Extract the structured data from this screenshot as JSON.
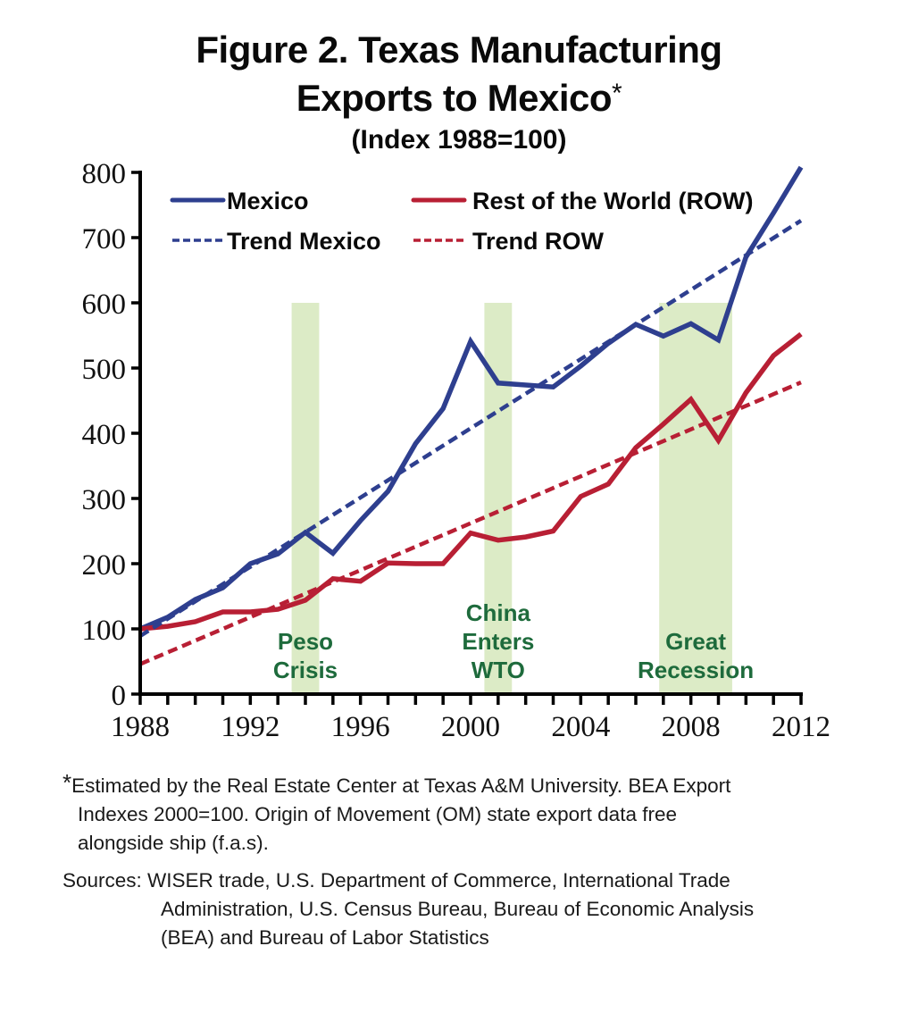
{
  "title": {
    "line1": "Figure 2. Texas Manufacturing",
    "line2": "Exports to Mexico",
    "line2_marker": "*",
    "subtitle": "(Index 1988=100)"
  },
  "chart_data": {
    "type": "line",
    "title": "Figure 2. Texas Manufacturing Exports to Mexico* (Index 1988=100)",
    "xlabel": "",
    "ylabel": "",
    "xlim": [
      1988,
      2012
    ],
    "ylim": [
      0,
      800
    ],
    "grid": false,
    "legend_position": "top",
    "x_ticks": [
      1988,
      1992,
      1996,
      2000,
      2004,
      2008,
      2012
    ],
    "x_tick_labels": [
      "1988",
      "1992",
      "1996",
      "2000",
      "2004",
      "2008",
      "2012"
    ],
    "y_ticks": [
      0,
      100,
      200,
      300,
      400,
      500,
      600,
      700,
      800
    ],
    "y_tick_labels": [
      "0",
      "100",
      "200",
      "300",
      "400",
      "500",
      "600",
      "700",
      "800"
    ],
    "x": [
      1988,
      1989,
      1990,
      1991,
      1992,
      1993,
      1994,
      1995,
      1996,
      1997,
      1998,
      1999,
      2000,
      2001,
      2002,
      2003,
      2004,
      2005,
      2006,
      2007,
      2008,
      2009,
      2010,
      2011,
      2012
    ],
    "series": [
      {
        "name": "Mexico",
        "style": "solid",
        "color": "#2e3f8f",
        "values": [
          100,
          118,
          145,
          163,
          200,
          215,
          248,
          216,
          266,
          311,
          384,
          438,
          541,
          477,
          474,
          471,
          503,
          538,
          567,
          549,
          568,
          543,
          670,
          738,
          808
        ]
      },
      {
        "name": "Rest of the World (ROW)",
        "style": "solid",
        "color": "#b81f34",
        "values": [
          100,
          104,
          111,
          126,
          126,
          130,
          144,
          177,
          173,
          201,
          200,
          200,
          247,
          236,
          241,
          250,
          303,
          322,
          378,
          414,
          452,
          389,
          462,
          519,
          552
        ]
      },
      {
        "name": "Trend Mexico",
        "style": "dashed",
        "color": "#2e3f8f",
        "x": [
          1988,
          2012
        ],
        "values": [
          89,
          726
        ]
      },
      {
        "name": "Trend ROW",
        "style": "dashed",
        "color": "#b81f34",
        "x": [
          1988,
          2012
        ],
        "values": [
          46,
          478
        ]
      }
    ],
    "shaded_periods": [
      {
        "label_lines": [
          "Peso",
          "Crisis"
        ],
        "x_start": 1993.5,
        "x_end": 1994.5,
        "y_top": 600
      },
      {
        "label_lines": [
          "China",
          "Enters",
          "WTO"
        ],
        "x_start": 2000.5,
        "x_end": 2001.5,
        "y_top": 600
      },
      {
        "label_lines": [
          "Great",
          "Recession"
        ],
        "x_start": 2006.85,
        "x_end": 2009.5,
        "y_top": 600
      }
    ],
    "colors": {
      "shade": "#dcebc6",
      "annotation_text": "#1e6b3c",
      "axis": "#000000"
    }
  },
  "footnotes": {
    "note_marker": "*",
    "note_lines": [
      "Estimated by the Real Estate Center at Texas A&M University. BEA Export",
      "Indexes 2000=100. Origin of Movement (OM) state export data free",
      "alongside ship (f.a.s)."
    ],
    "sources_lines": [
      "Sources: WISER trade, U.S. Department of Commerce, International Trade",
      "Administration, U.S. Census Bureau, Bureau of Economic Analysis",
      "(BEA) and Bureau of Labor Statistics"
    ]
  }
}
